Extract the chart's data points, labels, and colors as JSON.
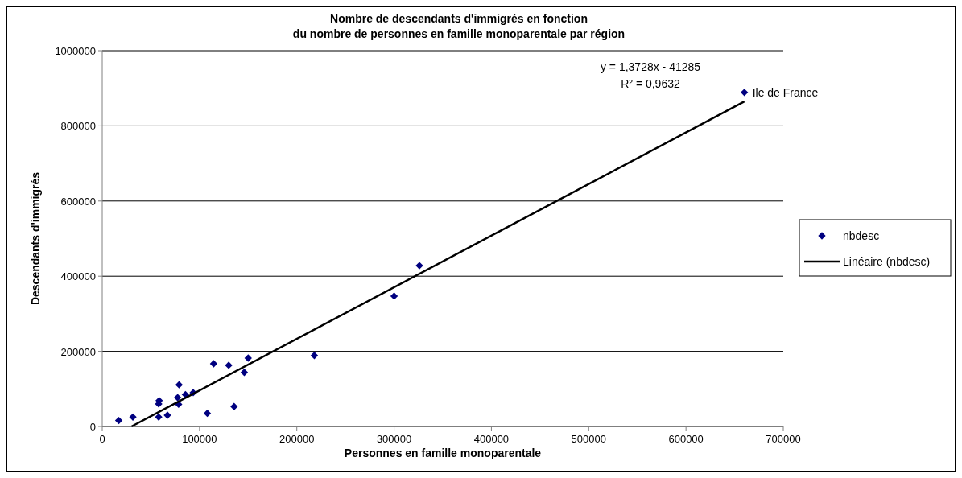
{
  "chart_data": {
    "type": "scatter",
    "title": "Nombre de descendants d'immigrés en fonction\ndu nombre de personnes en famille monoparentale par région",
    "xlabel": "Personnes en famille monoparentale",
    "ylabel": "Descendants d'immigrés",
    "xlim": [
      0,
      700000
    ],
    "xticks": [
      0,
      100000,
      200000,
      300000,
      400000,
      500000,
      600000,
      700000
    ],
    "ylim": [
      0,
      1000000
    ],
    "yticks": [
      0,
      200000,
      400000,
      600000,
      800000,
      1000000
    ],
    "grid": "y",
    "legend": "right",
    "series": [
      {
        "name": "nbdesc",
        "color": "#000080",
        "marker": "diamond",
        "x": [
          17000,
          31500,
          58000,
          67000,
          58500,
          58000,
          77500,
          78500,
          79000,
          85500,
          93500,
          108000,
          114500,
          130000,
          135500,
          146000,
          150000,
          218000,
          300000,
          326000,
          660000
        ],
        "values": [
          16000,
          25000,
          25000,
          30000,
          69000,
          60000,
          77000,
          59000,
          111000,
          85000,
          90000,
          35000,
          167000,
          163000,
          53000,
          144000,
          182000,
          189000,
          347000,
          428000,
          889000
        ]
      },
      {
        "name": "Linéaire (nbdesc)",
        "type": "line",
        "color": "#000000",
        "line_style": "solid",
        "marker": "none",
        "x": [
          30074,
          660000
        ],
        "values": [
          0,
          865000
        ]
      }
    ],
    "annotations": [
      {
        "text": "Ile de France",
        "x": 660000,
        "y": 889000
      },
      "y = 1,3728x - 41285",
      "R² = 0,9632"
    ]
  }
}
